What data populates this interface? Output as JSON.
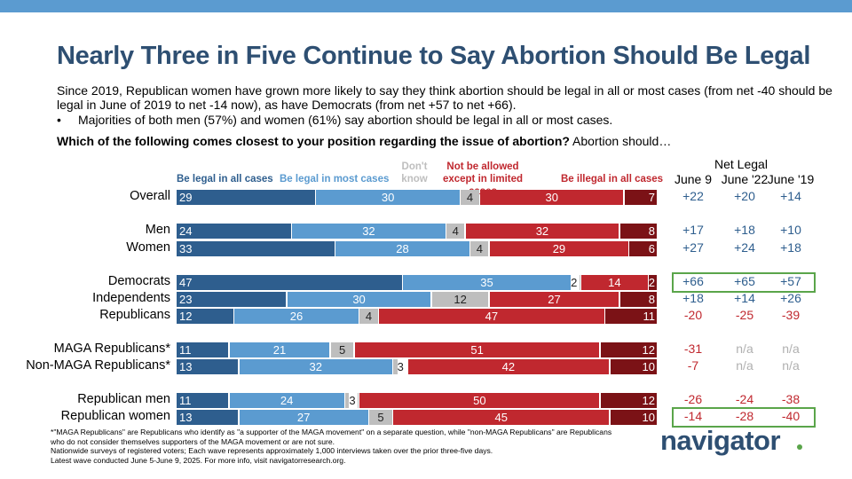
{
  "page": {
    "title": "Nearly Three in Five Continue to Say Abortion Should Be Legal",
    "intro": "Since 2019, Republican women have grown more likely to say they think abortion should be legal in all or most cases (from net -40 should be legal in June of 2019 to net -14 now), as have Democrats (from net +57 to net +66).",
    "bullet_marker": "•",
    "bullet": "Majorities of both men (57%) and women (61%) say abortion should be legal in all or most cases.",
    "question_bold": "Which of the following comes closest to your position regarding the issue of abortion?",
    "question_rest": " Abortion should…",
    "logo": "navigator",
    "footnote": [
      "*\"MAGA Republicans\" are Republicans who identify as \"a supporter of the MAGA movement\" on a separate question, while \"non-MAGA Republicans\" are Republicans who do not consider themselves supporters of the MAGA movement or are not sure.",
      "Nationwide surveys of registered voters; Each wave represents approximately 1,000 interviews taken over the prior three-five days.",
      "Latest wave conducted June 5-June 9, 2025. For more info, visit navigatorresearch.org."
    ]
  },
  "chart_data": {
    "type": "bar",
    "orientation": "horizontal-stacked",
    "categories": [
      "Be legal in all cases",
      "Be legal in most cases",
      "Don't know",
      "Not be allowed except in limited cases",
      "Be illegal in all cases"
    ],
    "colors": [
      "#2e5e8e",
      "#5b9bd0",
      "#bebebe",
      "#c0282f",
      "#7b1216"
    ],
    "label_colors": [
      "#2e5e8e",
      "#5b9bd0",
      "#bebebe",
      "#c0282f",
      "#c0282f"
    ],
    "net_header": "Net Legal",
    "net_columns": [
      "June 9",
      "June '22",
      "June '19"
    ],
    "rows": [
      {
        "label": "Overall",
        "values": [
          29,
          30,
          4,
          30,
          7
        ],
        "net": [
          "+22",
          "+20",
          "+14"
        ]
      },
      {
        "label": "Men",
        "values": [
          24,
          32,
          4,
          32,
          8
        ],
        "net": [
          "+17",
          "+18",
          "+10"
        ]
      },
      {
        "label": "Women",
        "values": [
          33,
          28,
          4,
          29,
          6
        ],
        "net": [
          "+27",
          "+24",
          "+18"
        ]
      },
      {
        "label": "Democrats",
        "values": [
          47,
          35,
          2,
          14,
          2
        ],
        "net": [
          "+66",
          "+65",
          "+57"
        ],
        "highlight": true
      },
      {
        "label": "Independents",
        "values": [
          23,
          30,
          12,
          27,
          8
        ],
        "net": [
          "+18",
          "+14",
          "+26"
        ]
      },
      {
        "label": "Republicans",
        "values": [
          12,
          26,
          4,
          47,
          11
        ],
        "net": [
          "-20",
          "-25",
          "-39"
        ]
      },
      {
        "label": "MAGA Republicans*",
        "values": [
          11,
          21,
          5,
          51,
          12
        ],
        "net": [
          "-31",
          "n/a",
          "n/a"
        ]
      },
      {
        "label": "Non-MAGA Republicans*",
        "values": [
          13,
          32,
          3,
          42,
          10
        ],
        "net": [
          "-7",
          "n/a",
          "n/a"
        ]
      },
      {
        "label": "Republican men",
        "values": [
          11,
          24,
          3,
          50,
          12
        ],
        "net": [
          "-26",
          "-24",
          "-38"
        ]
      },
      {
        "label": "Republican women",
        "values": [
          13,
          27,
          5,
          45,
          10
        ],
        "net": [
          "-14",
          "-28",
          "-40"
        ],
        "highlight": true
      }
    ],
    "net_colors": {
      "positive": "#2e5e8e",
      "negative": "#c0282f",
      "na": "#b0b0b0"
    }
  }
}
